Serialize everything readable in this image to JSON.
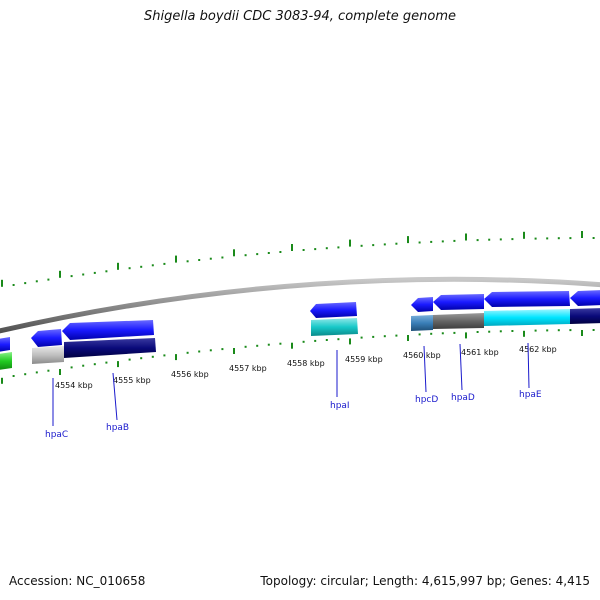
{
  "header": {
    "title": "Shigella boydii CDC 3083-94, complete genome"
  },
  "footer": {
    "accession": "Accession: NC_010658",
    "topology": "Topology: circular; Length: 4,615,997 bp; Genes: 4,415"
  },
  "scale": {
    "labels": [
      "4554 kbp",
      "4555 kbp",
      "4556 kbp",
      "4557 kbp",
      "4558 kbp",
      "4559 kbp",
      "4560 kbp",
      "4561 kbp",
      "4562 kbp"
    ]
  },
  "genes": [
    {
      "name": "hpaC"
    },
    {
      "name": "hpaB"
    },
    {
      "name": "hpaI"
    },
    {
      "name": "hpcD"
    },
    {
      "name": "hpaD"
    },
    {
      "name": "hpaE"
    }
  ],
  "colors": {
    "backbone": "#8a8a8a",
    "tick": "#1a8a1a",
    "cds_blue": "#1a1aff",
    "cds_navy": "#0a0a7a",
    "label": "#1a1acc",
    "cyan": "#00e5ff",
    "teal": "#18c8c8",
    "steelblue": "#3a7fb8",
    "gray_dark": "#666666",
    "gray_light": "#c0c0c0",
    "green": "#22cc22"
  }
}
